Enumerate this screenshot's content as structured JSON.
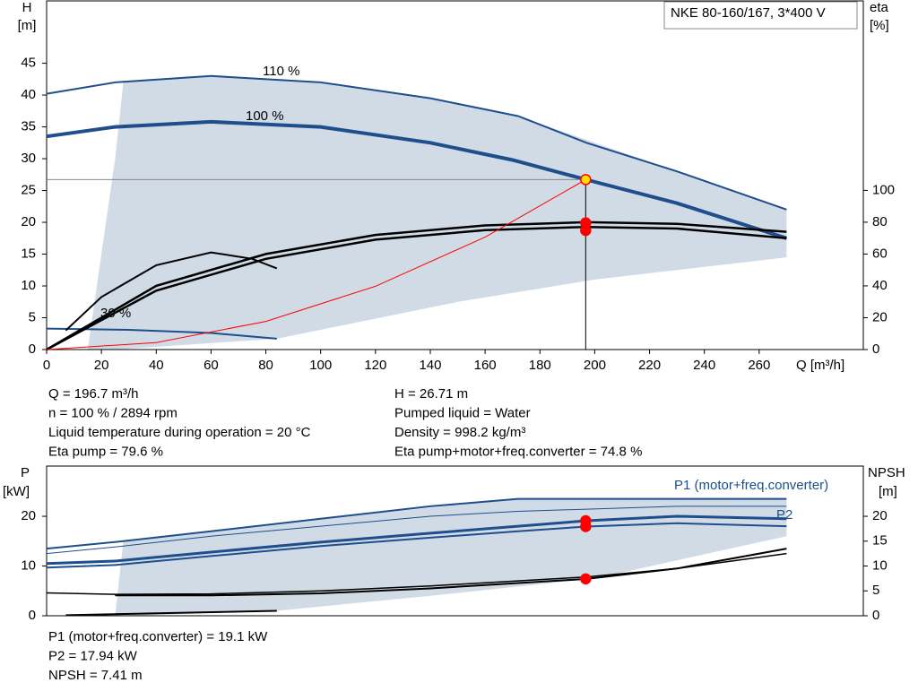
{
  "chart_data": [
    {
      "type": "line",
      "title": "NKE 80-160/167, 3*400 V",
      "y_label": [
        "H",
        "[m]"
      ],
      "y2_label": [
        "eta",
        "[%]"
      ],
      "x_label": "Q [m³/h]",
      "xlim": [
        0,
        298
      ],
      "ylim": [
        0,
        54.8
      ],
      "y2lim": [
        0,
        219
      ],
      "xticks": [
        0,
        20,
        40,
        60,
        80,
        100,
        120,
        140,
        160,
        180,
        200,
        220,
        240,
        260
      ],
      "yticks": [
        0,
        5,
        10,
        15,
        20,
        25,
        30,
        35,
        40,
        45
      ],
      "y2ticks": [
        0,
        20,
        40,
        60,
        80,
        100
      ],
      "region": {
        "color": "#d0dbe6",
        "x": [
          28,
          60,
          100,
          140,
          172,
          230,
          270,
          270,
          200,
          150,
          84,
          25,
          15,
          20,
          25
        ],
        "y": [
          42,
          43,
          42,
          39.5,
          36.7,
          28,
          22,
          14.5,
          11,
          7.5,
          1.7,
          0,
          0,
          15,
          30
        ]
      },
      "series": [
        {
          "name": "110 %",
          "color": "#1f4e8c",
          "width": 2,
          "x": [
            0,
            25,
            60,
            100,
            140,
            172,
            197,
            230,
            270
          ],
          "values": [
            40.2,
            42,
            43,
            42,
            39.5,
            36.7,
            32.5,
            28,
            22
          ]
        },
        {
          "name": "100 %",
          "color": "#1f4e8c",
          "width": 4,
          "x": [
            0,
            25,
            60,
            100,
            140,
            170,
            197,
            230,
            270
          ],
          "values": [
            33.5,
            35,
            35.8,
            35,
            32.5,
            29.8,
            26.7,
            23,
            17.5
          ]
        },
        {
          "name": "30 %",
          "color": "#1f4e8c",
          "width": 2,
          "x": [
            0,
            30,
            60,
            84
          ],
          "values": [
            3.3,
            3.1,
            2.6,
            1.7
          ]
        },
        {
          "color": "#000000",
          "width": 2.5,
          "axis": "y2",
          "x": [
            0,
            40,
            80,
            120,
            160,
            197,
            230,
            270
          ],
          "values": [
            0,
            40,
            60,
            72,
            78,
            80,
            79,
            74
          ]
        },
        {
          "color": "#000000",
          "width": 2.5,
          "axis": "y2",
          "x": [
            0,
            40,
            80,
            120,
            160,
            197,
            230,
            270
          ],
          "values": [
            0,
            37,
            57,
            69,
            75,
            77,
            76,
            70
          ]
        },
        {
          "color": "#000000",
          "width": 2,
          "axis": "y2",
          "x": [
            7,
            20,
            40,
            60,
            75,
            84
          ],
          "values": [
            12,
            33,
            53,
            61,
            57,
            51
          ]
        },
        {
          "color": "#ff0000",
          "width": 1,
          "x": [
            0,
            40,
            80,
            120,
            160,
            196.7
          ],
          "values": [
            0,
            1.1,
            4.42,
            9.94,
            17.67,
            26.71
          ]
        }
      ],
      "points": [
        {
          "x": 196.7,
          "y": 26.71,
          "color": "#ffe000",
          "guide": true
        },
        {
          "x": 196.7,
          "y": 79.6,
          "axis": "y2",
          "color": "#ff0000"
        },
        {
          "x": 196.7,
          "y": 74.8,
          "axis": "y2",
          "color": "#ff0000"
        }
      ],
      "notes": [
        [
          "Q = 196.7 m³/h",
          "n = 100 % / 2894 rpm",
          "Liquid temperature during operation = 20 °C",
          "Eta pump = 79.6 %"
        ],
        [
          "H = 26.71 m",
          "Pumped liquid = Water",
          "Density = 998.2 kg/m³",
          "Eta pump+motor+freq.converter = 74.8 %"
        ]
      ]
    },
    {
      "type": "line",
      "y_label": [
        "P",
        "[kW]"
      ],
      "y2_label": [
        "NPSH",
        "[m]"
      ],
      "xlim": [
        0,
        298
      ],
      "ylim": [
        0,
        30.1
      ],
      "y2lim": [
        0,
        30.1
      ],
      "yticks": [
        0,
        10,
        20
      ],
      "y2ticks": [
        0,
        5,
        10,
        15,
        20
      ],
      "region": {
        "color": "#d0dbe6",
        "x": [
          28,
          100,
          172,
          270,
          270,
          200,
          140,
          84,
          30,
          25
        ],
        "y": [
          15,
          19.5,
          23.5,
          23.5,
          16,
          7.5,
          4,
          1,
          0,
          0
        ]
      },
      "series": [
        {
          "color": "#1f4e8c",
          "width": 2,
          "x": [
            0,
            28,
            60,
            100,
            140,
            172,
            230,
            270
          ],
          "values": [
            13.5,
            15,
            17,
            19.5,
            22,
            23.5,
            23.5,
            23.5
          ]
        },
        {
          "color": "#1f4e8c",
          "width": 1,
          "x": [
            0,
            28,
            60,
            100,
            140,
            172,
            230,
            270
          ],
          "values": [
            12.5,
            14,
            16,
            18,
            20,
            21,
            22,
            22
          ]
        },
        {
          "name": "P1 (motor+freq.converter)",
          "color": "#1f4e8c",
          "width": 3,
          "x": [
            0,
            25,
            60,
            100,
            140,
            172,
            197,
            230,
            270
          ],
          "values": [
            10.5,
            11,
            12.8,
            14.8,
            16.6,
            18,
            19.1,
            20,
            19.5
          ]
        },
        {
          "name": "P2",
          "color": "#1f4e8c",
          "width": 2,
          "x": [
            0,
            25,
            60,
            100,
            140,
            172,
            197,
            230,
            270
          ],
          "values": [
            9.7,
            10.2,
            12,
            14,
            15.7,
            17,
            17.94,
            18.6,
            18
          ]
        },
        {
          "color": "#000000",
          "width": 2,
          "axis": "y2",
          "x": [
            25,
            60,
            100,
            140,
            197,
            230,
            270
          ],
          "values": [
            4.1,
            4.1,
            4.5,
            5.5,
            7.41,
            9.5,
            13.5
          ]
        },
        {
          "color": "#000000",
          "width": 1.5,
          "axis": "y2",
          "x": [
            0,
            25,
            60,
            100,
            140,
            197,
            230,
            270
          ],
          "values": [
            4.6,
            4.3,
            4.4,
            5,
            6,
            7.8,
            9.5,
            12.5
          ]
        },
        {
          "color": "#000000",
          "width": 2,
          "x": [
            7,
            84
          ],
          "values": [
            0.1,
            1
          ]
        }
      ],
      "points": [
        {
          "x": 196.7,
          "y": 19.1,
          "color": "#ff0000"
        },
        {
          "x": 196.7,
          "y": 17.94,
          "color": "#ff0000"
        },
        {
          "x": 196.7,
          "y": 7.41,
          "axis": "y2",
          "color": "#ff0000"
        }
      ],
      "notes": [
        [
          "P1 (motor+freq.converter) = 19.1 kW",
          "P2 = 17.94 kW",
          "NPSH = 7.41 m"
        ]
      ]
    }
  ]
}
